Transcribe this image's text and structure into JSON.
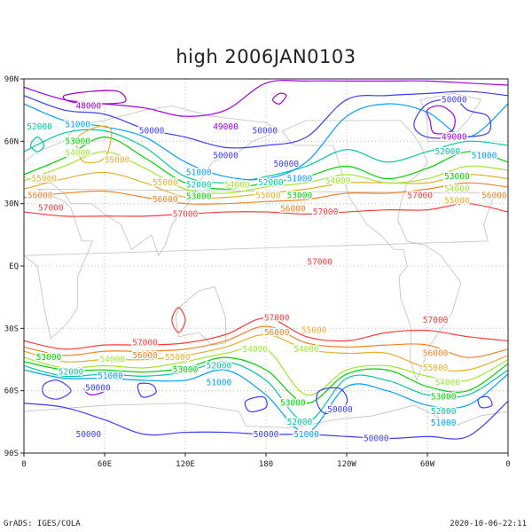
{
  "title": "high 2006JAN0103",
  "footer": {
    "left": "GrADS: IGES/COLA",
    "right": "2020-10-06-22:11"
  },
  "map": {
    "projection": "latlon",
    "lon_range": [
      0,
      360
    ],
    "lat_range": [
      -90,
      90
    ],
    "lat_ticks": [
      "90N",
      "60N",
      "30N",
      "EQ",
      "30S",
      "60S",
      "90S"
    ],
    "lon_ticks": [
      "0",
      "60E",
      "120E",
      "180",
      "120W",
      "60W",
      "0"
    ],
    "grid": "dotted",
    "coastline_color": "#c0c0c0"
  },
  "contours": {
    "levels": [
      48000,
      49000,
      50000,
      51000,
      52000,
      53000,
      54000,
      55000,
      56000,
      57000
    ],
    "colors": {
      "48000": "#a000c8",
      "49000": "#a000e6",
      "50000": "#3c3cff",
      "51000": "#00a0ff",
      "52000": "#00c8a0",
      "53000": "#00d200",
      "54000": "#a0e632",
      "55000": "#e6af2d",
      "56000": "#f08228",
      "57000": "#fa3c3c"
    }
  }
}
